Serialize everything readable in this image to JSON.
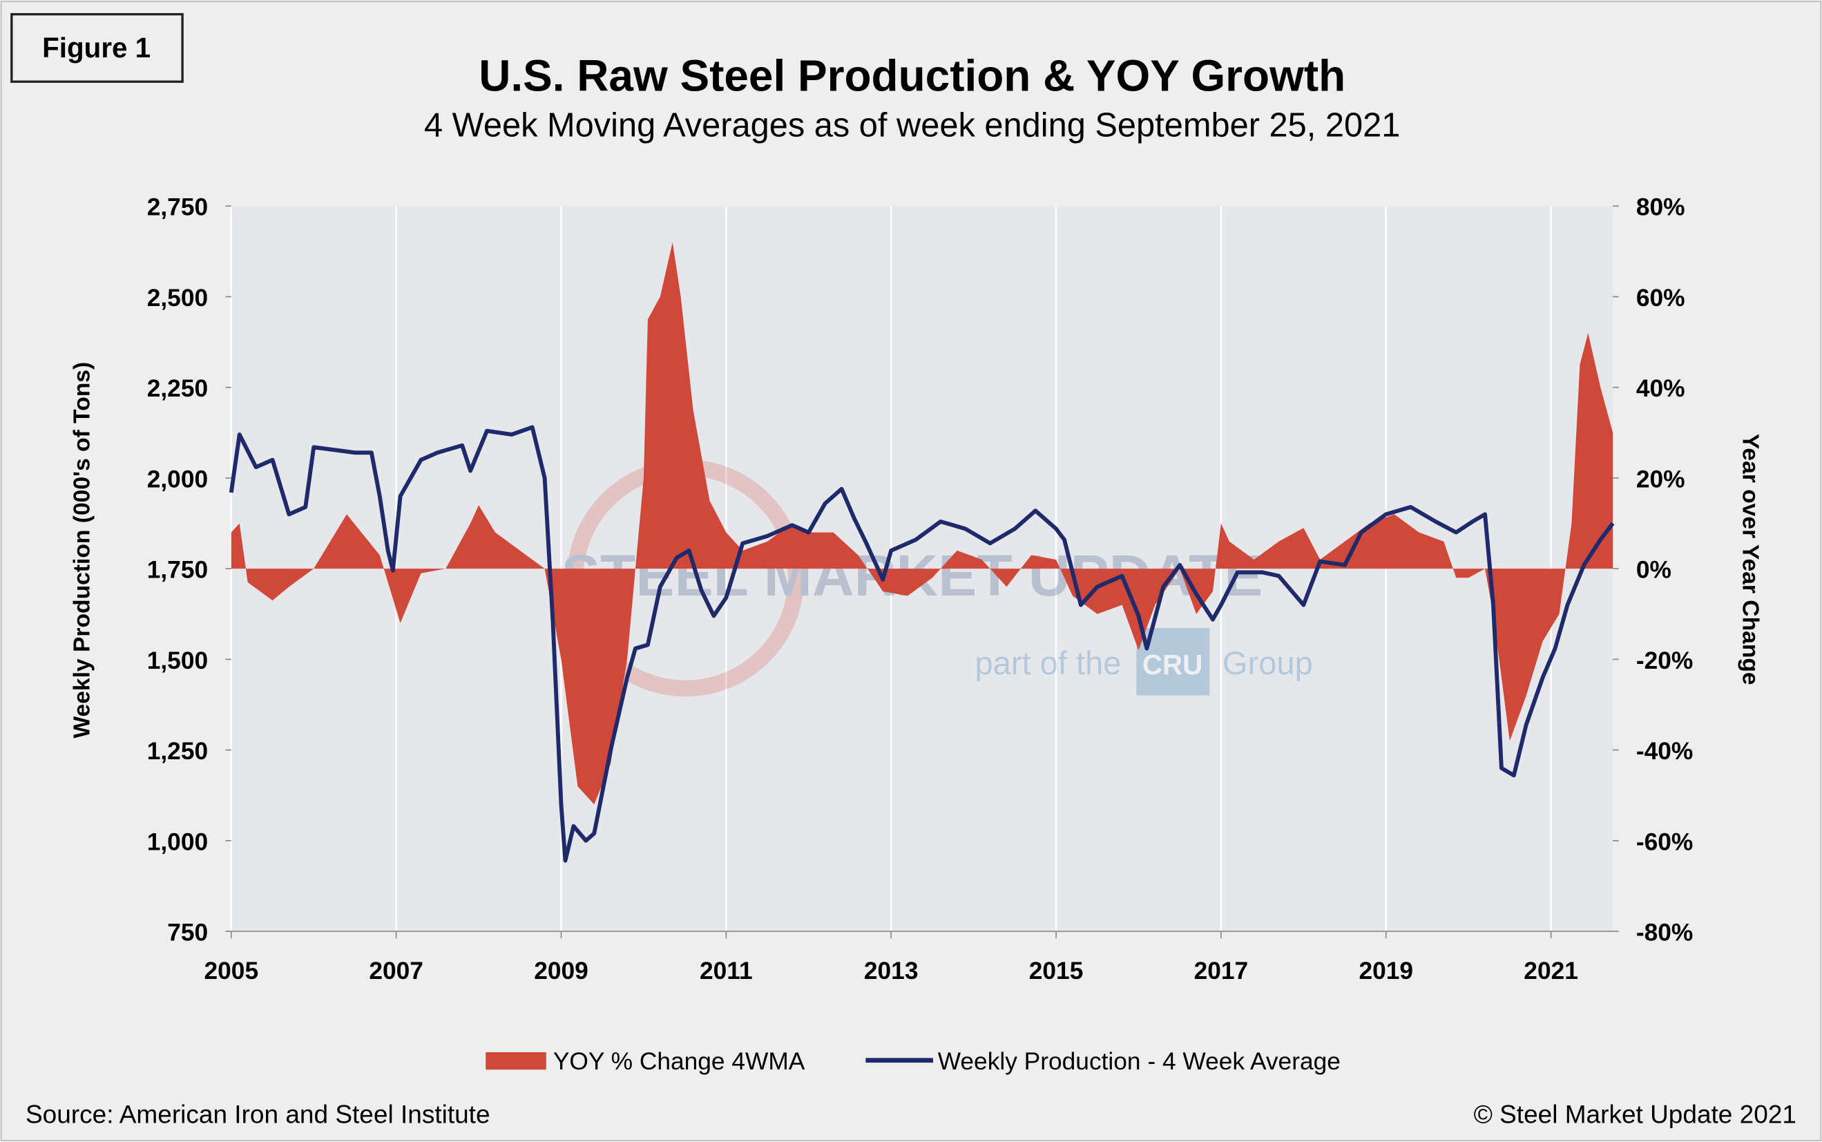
{
  "figure_label": "Figure 1",
  "source": "Source: American Iron and Steel Institute",
  "copyright": "© Steel Market Update 2021",
  "watermark": {
    "brand": "STEEL MARKET UPDATE",
    "tagline": "part of the",
    "logo": "CRU",
    "suffix": "Group"
  },
  "chart_data": {
    "type": "area-line",
    "title": "U.S. Raw Steel Production & YOY Growth",
    "subtitle": "4 Week Moving Averages as of week ending September 25, 2021",
    "y_label": "Weekly Production (000's of Tons)",
    "y2_label": "Year over Year Change",
    "xlim": [
      2005,
      2021.75
    ],
    "xticks": [
      2005,
      2007,
      2009,
      2011,
      2013,
      2015,
      2017,
      2019,
      2021
    ],
    "ylim": [
      750,
      2750
    ],
    "yticks": [
      750,
      {
        "value": 1000,
        "label": "1,000"
      },
      {
        "value": 1250,
        "label": "1,250"
      },
      {
        "value": 1500,
        "label": "1,500"
      },
      {
        "value": 1750,
        "label": "1,750"
      },
      {
        "value": 2000,
        "label": "2,000"
      },
      {
        "value": 2250,
        "label": "2,250"
      },
      {
        "value": 2500,
        "label": "2,500"
      },
      {
        "value": 2750,
        "label": "2,750"
      }
    ],
    "y2lim": [
      -80,
      80
    ],
    "y2ticks": [
      {
        "value": -80,
        "label": "-80%"
      },
      {
        "value": -60,
        "label": "-60%"
      },
      {
        "value": -40,
        "label": "-40%"
      },
      {
        "value": -20,
        "label": "-20%"
      },
      {
        "value": 0,
        "label": "0%"
      },
      {
        "value": 20,
        "label": "20%"
      },
      {
        "value": 40,
        "label": "40%"
      },
      {
        "value": 60,
        "label": "60%"
      },
      {
        "value": 80,
        "label": "80%"
      }
    ],
    "grid": true,
    "series": [
      {
        "name": "YOY % Change 4WMA",
        "kind": "area",
        "axis": "y2",
        "color": "#d0483a",
        "x": [
          2005.0,
          2005.1,
          2005.2,
          2005.5,
          2005.7,
          2006.0,
          2006.4,
          2006.8,
          2007.05,
          2007.3,
          2007.6,
          2007.9,
          2008.0,
          2008.2,
          2008.5,
          2008.8,
          2009.0,
          2009.2,
          2009.4,
          2009.6,
          2009.8,
          2010.0,
          2010.05,
          2010.2,
          2010.35,
          2010.45,
          2010.6,
          2010.8,
          2011.0,
          2011.2,
          2011.5,
          2011.8,
          2012.0,
          2012.3,
          2012.6,
          2012.9,
          2013.2,
          2013.5,
          2013.8,
          2014.1,
          2014.4,
          2014.7,
          2015.0,
          2015.2,
          2015.5,
          2015.8,
          2016.0,
          2016.2,
          2016.5,
          2016.7,
          2016.9,
          2017.0,
          2017.1,
          2017.4,
          2017.7,
          2018.0,
          2018.2,
          2018.5,
          2018.8,
          2019.1,
          2019.4,
          2019.7,
          2019.85,
          2020.0,
          2020.2,
          2020.3,
          2020.5,
          2020.7,
          2020.9,
          2021.1,
          2021.25,
          2021.35,
          2021.45,
          2021.6,
          2021.75
        ],
        "values": [
          8,
          10,
          -3,
          -7,
          -4,
          0,
          12,
          3,
          -12,
          -1,
          0,
          10,
          14,
          8,
          4,
          0,
          -20,
          -48,
          -52,
          -43,
          -20,
          20,
          55,
          60,
          72,
          60,
          35,
          15,
          8,
          4,
          6,
          10,
          8,
          8,
          3,
          -5,
          -6,
          -2,
          4,
          2,
          -4,
          3,
          2,
          -6,
          -10,
          -8,
          -18,
          -8,
          0,
          -10,
          -5,
          10,
          6,
          2,
          6,
          9,
          2,
          6,
          10,
          12,
          8,
          6,
          -2,
          -2,
          0,
          -10,
          -38,
          -28,
          -16,
          -10,
          10,
          45,
          52,
          40,
          30
        ]
      },
      {
        "name": "Weekly Production - 4 Week Average",
        "kind": "line",
        "axis": "y",
        "color": "#1f2a6b",
        "x": [
          2005.0,
          2005.1,
          2005.3,
          2005.5,
          2005.7,
          2005.9,
          2006.0,
          2006.5,
          2006.7,
          2006.8,
          2006.9,
          2006.96,
          2007.05,
          2007.3,
          2007.5,
          2007.8,
          2007.9,
          2008.1,
          2008.4,
          2008.65,
          2008.8,
          2008.9,
          2009.0,
          2009.05,
          2009.15,
          2009.3,
          2009.4,
          2009.6,
          2009.8,
          2009.9,
          2010.05,
          2010.2,
          2010.4,
          2010.55,
          2010.7,
          2010.85,
          2011.0,
          2011.2,
          2011.5,
          2011.8,
          2012.0,
          2012.2,
          2012.4,
          2012.55,
          2012.7,
          2012.9,
          2013.0,
          2013.3,
          2013.6,
          2013.9,
          2014.2,
          2014.5,
          2014.75,
          2015.0,
          2015.1,
          2015.3,
          2015.5,
          2015.8,
          2016.0,
          2016.1,
          2016.3,
          2016.5,
          2016.7,
          2016.9,
          2017.0,
          2017.2,
          2017.5,
          2017.7,
          2018.0,
          2018.2,
          2018.5,
          2018.7,
          2019.0,
          2019.3,
          2019.6,
          2019.85,
          2020.05,
          2020.2,
          2020.3,
          2020.4,
          2020.55,
          2020.7,
          2020.9,
          2021.05,
          2021.2,
          2021.4,
          2021.6,
          2021.75
        ],
        "values": [
          1960,
          2120,
          2030,
          2050,
          1900,
          1920,
          2085,
          2070,
          2070,
          1950,
          1800,
          1745,
          1950,
          2050,
          2070,
          2090,
          2020,
          2130,
          2120,
          2140,
          2000,
          1600,
          1100,
          945,
          1040,
          1000,
          1020,
          1250,
          1450,
          1530,
          1540,
          1700,
          1780,
          1800,
          1690,
          1620,
          1670,
          1820,
          1840,
          1870,
          1850,
          1930,
          1970,
          1890,
          1820,
          1720,
          1800,
          1830,
          1880,
          1860,
          1820,
          1860,
          1910,
          1860,
          1830,
          1650,
          1700,
          1730,
          1620,
          1530,
          1700,
          1760,
          1680,
          1610,
          1650,
          1740,
          1740,
          1730,
          1650,
          1770,
          1760,
          1850,
          1900,
          1920,
          1880,
          1850,
          1880,
          1900,
          1650,
          1200,
          1180,
          1320,
          1450,
          1530,
          1650,
          1760,
          1830,
          1875
        ]
      }
    ]
  }
}
